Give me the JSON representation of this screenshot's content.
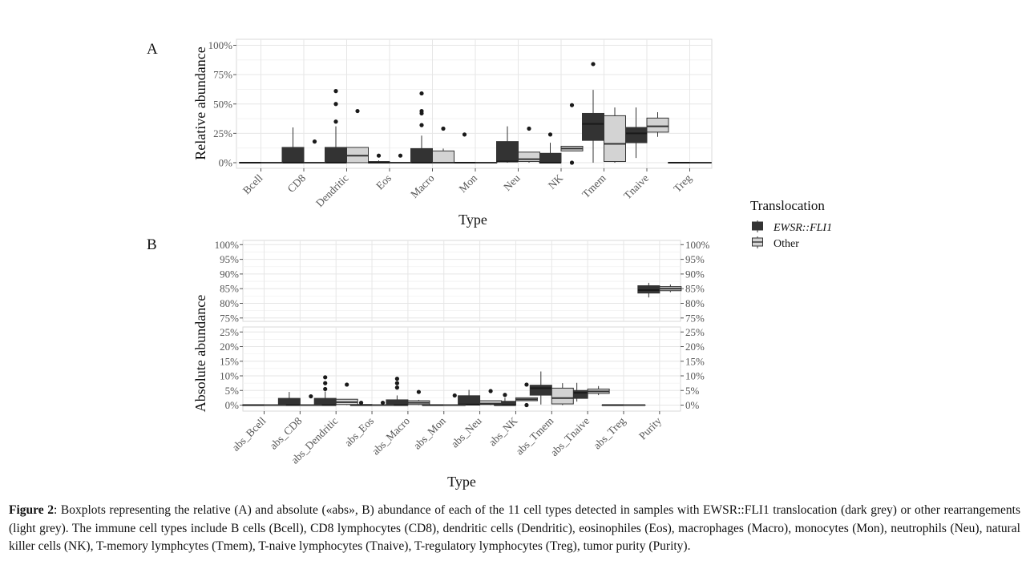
{
  "figure": {
    "panel_a_label": "A",
    "panel_b_label": "B",
    "legend": {
      "title": "Translocation",
      "items": [
        {
          "label": "EWSR::FLI1",
          "italic": true,
          "color": "#333333"
        },
        {
          "label": "Other",
          "italic": false,
          "color": "#d3d3d3"
        }
      ]
    }
  },
  "chart_data": [
    {
      "type": "box",
      "panel": "A",
      "xlabel": "Type",
      "ylabel": "Relative abundance",
      "ylim": [
        0,
        1
      ],
      "yticks": [
        "0%",
        "25%",
        "50%",
        "75%",
        "100%"
      ],
      "ytick_values": [
        0,
        0.25,
        0.5,
        0.75,
        1.0
      ],
      "categories": [
        "Bcell",
        "CD8",
        "Dendritic",
        "Eos",
        "Macro",
        "Mon",
        "Neu",
        "NK",
        "Tmem",
        "Tnaive",
        "Treg"
      ],
      "series": [
        {
          "name": "EWSR::FLI1",
          "boxes": [
            {
              "min": 0,
              "q1": 0,
              "median": 0,
              "q3": 0,
              "max": 0,
              "outliers": []
            },
            {
              "min": 0,
              "q1": 0,
              "median": 0,
              "q3": 0.13,
              "max": 0.3,
              "outliers": []
            },
            {
              "min": 0,
              "q1": 0,
              "median": 0,
              "q3": 0.13,
              "max": 0.31,
              "outliers": [
                0.35,
                0.5,
                0.61
              ]
            },
            {
              "min": 0,
              "q1": 0,
              "median": 0,
              "q3": 0.01,
              "max": 0.02,
              "outliers": [
                0.06
              ]
            },
            {
              "min": 0,
              "q1": 0,
              "median": 0,
              "q3": 0.12,
              "max": 0.23,
              "outliers": [
                0.32,
                0.42,
                0.44,
                0.59
              ]
            },
            {
              "min": 0,
              "q1": 0,
              "median": 0,
              "q3": 0,
              "max": 0,
              "outliers": [
                0.24
              ]
            },
            {
              "min": 0,
              "q1": 0.01,
              "median": 0.01,
              "q3": 0.18,
              "max": 0.31,
              "outliers": []
            },
            {
              "min": 0,
              "q1": 0,
              "median": 0,
              "q3": 0.08,
              "max": 0.17,
              "outliers": [
                0.24
              ]
            },
            {
              "min": 0,
              "q1": 0.19,
              "median": 0.33,
              "q3": 0.42,
              "max": 0.62,
              "outliers": [
                0.84
              ]
            },
            {
              "min": 0.04,
              "q1": 0.17,
              "median": 0.25,
              "q3": 0.3,
              "max": 0.47,
              "outliers": []
            },
            {
              "min": 0,
              "q1": 0,
              "median": 0,
              "q3": 0,
              "max": 0,
              "outliers": []
            }
          ]
        },
        {
          "name": "Other",
          "boxes": [
            {
              "min": 0,
              "q1": 0,
              "median": 0,
              "q3": 0,
              "max": 0,
              "outliers": []
            },
            {
              "min": 0,
              "q1": 0,
              "median": 0,
              "q3": 0,
              "max": 0,
              "outliers": [
                0.18
              ]
            },
            {
              "min": 0,
              "q1": 0,
              "median": 0.06,
              "q3": 0.13,
              "max": 0.13,
              "outliers": [
                0.44
              ]
            },
            {
              "min": 0,
              "q1": 0,
              "median": 0,
              "q3": 0,
              "max": 0,
              "outliers": [
                0.06
              ]
            },
            {
              "min": 0,
              "q1": 0,
              "median": 0,
              "q3": 0.1,
              "max": 0.12,
              "outliers": [
                0.29
              ]
            },
            {
              "min": 0,
              "q1": 0,
              "median": 0,
              "q3": 0,
              "max": 0,
              "outliers": []
            },
            {
              "min": 0,
              "q1": 0.01,
              "median": 0.03,
              "q3": 0.09,
              "max": 0.09,
              "outliers": [
                0.29
              ]
            },
            {
              "min": 0.1,
              "q1": 0.1,
              "median": 0.12,
              "q3": 0.14,
              "max": 0.14,
              "outliers": [
                0,
                0.49
              ]
            },
            {
              "min": 0,
              "q1": 0.01,
              "median": 0.16,
              "q3": 0.4,
              "max": 0.47,
              "outliers": []
            },
            {
              "min": 0.22,
              "q1": 0.26,
              "median": 0.31,
              "q3": 0.38,
              "max": 0.43,
              "outliers": []
            },
            {
              "min": 0,
              "q1": 0,
              "median": 0,
              "q3": 0,
              "max": 0,
              "outliers": []
            }
          ]
        }
      ]
    },
    {
      "type": "box",
      "panel": "B",
      "xlabel": "Type",
      "ylabel": "Absolute abundance",
      "categories": [
        "abs_Bcell",
        "abs_CD8",
        "abs_Dendritic",
        "abs_Eos",
        "abs_Macro",
        "abs_Mon",
        "abs_Neu",
        "abs_NK",
        "abs_Tmem",
        "abs_Tnaive",
        "abs_Treg",
        "Purity"
      ],
      "facets": [
        {
          "ylim": [
            0.74,
            1.0
          ],
          "yticks": [
            "75%",
            "80%",
            "85%",
            "90%",
            "95%",
            "100%"
          ],
          "ytick_values": [
            0.75,
            0.8,
            0.85,
            0.9,
            0.95,
            1.0
          ]
        },
        {
          "ylim": [
            0,
            0.25
          ],
          "yticks": [
            "0%",
            "5%",
            "10%",
            "15%",
            "20%",
            "25%"
          ],
          "ytick_values": [
            0,
            0.05,
            0.1,
            0.15,
            0.2,
            0.25
          ]
        }
      ],
      "series": [
        {
          "name": "EWSR::FLI1",
          "boxes": [
            {
              "min": 0,
              "q1": 0,
              "median": 0,
              "q3": 0,
              "max": 0,
              "outliers": []
            },
            {
              "min": 0,
              "q1": 0,
              "median": 0,
              "q3": 0.023,
              "max": 0.045,
              "outliers": []
            },
            {
              "min": 0,
              "q1": 0,
              "median": 0,
              "q3": 0.023,
              "max": 0.047,
              "outliers": [
                0.055,
                0.075,
                0.095
              ]
            },
            {
              "min": 0,
              "q1": 0,
              "median": 0,
              "q3": 0.002,
              "max": 0.005,
              "outliers": [
                0.008
              ]
            },
            {
              "min": 0,
              "q1": 0,
              "median": 0,
              "q3": 0.018,
              "max": 0.033,
              "outliers": [
                0.06,
                0.075,
                0.09
              ]
            },
            {
              "min": 0,
              "q1": 0,
              "median": 0,
              "q3": 0,
              "max": 0,
              "outliers": []
            },
            {
              "min": 0,
              "q1": 0,
              "median": 0.002,
              "q3": 0.032,
              "max": 0.052,
              "outliers": []
            },
            {
              "min": 0,
              "q1": 0,
              "median": 0,
              "q3": 0.013,
              "max": 0.025,
              "outliers": [
                0.035
              ]
            },
            {
              "min": 0.002,
              "q1": 0.034,
              "median": 0.058,
              "q3": 0.068,
              "max": 0.115,
              "outliers": []
            },
            {
              "min": 0.012,
              "q1": 0.023,
              "median": 0.042,
              "q3": 0.05,
              "max": 0.076,
              "outliers": []
            },
            {
              "min": 0,
              "q1": 0,
              "median": 0,
              "q3": 0,
              "max": 0,
              "outliers": []
            },
            {
              "min": 0.82,
              "q1": 0.835,
              "median": 0.845,
              "q3": 0.86,
              "max": 0.87,
              "outliers": []
            }
          ]
        },
        {
          "name": "Other",
          "boxes": [
            {
              "min": 0,
              "q1": 0,
              "median": 0,
              "q3": 0,
              "max": 0,
              "outliers": []
            },
            {
              "min": 0,
              "q1": 0,
              "median": 0,
              "q3": 0,
              "max": 0,
              "outliers": [
                0.03
              ]
            },
            {
              "min": 0,
              "q1": 0.002,
              "median": 0.01,
              "q3": 0.02,
              "max": 0.02,
              "outliers": [
                0.07
              ]
            },
            {
              "min": 0,
              "q1": 0,
              "median": 0,
              "q3": 0,
              "max": 0,
              "outliers": [
                0.008
              ]
            },
            {
              "min": 0,
              "q1": 0.002,
              "median": 0.008,
              "q3": 0.015,
              "max": 0.018,
              "outliers": [
                0.045
              ]
            },
            {
              "min": 0,
              "q1": 0,
              "median": 0,
              "q3": 0,
              "max": 0,
              "outliers": [
                0.033
              ]
            },
            {
              "min": 0,
              "q1": 0.002,
              "median": 0.005,
              "q3": 0.015,
              "max": 0.015,
              "outliers": [
                0.048
              ]
            },
            {
              "min": 0.015,
              "q1": 0.015,
              "median": 0.02,
              "q3": 0.025,
              "max": 0.025,
              "outliers": [
                0,
                0.07
              ]
            },
            {
              "min": 0,
              "q1": 0.004,
              "median": 0.024,
              "q3": 0.058,
              "max": 0.075,
              "outliers": []
            },
            {
              "min": 0.034,
              "q1": 0.04,
              "median": 0.047,
              "q3": 0.055,
              "max": 0.065,
              "outliers": []
            },
            {
              "min": 0,
              "q1": 0,
              "median": 0,
              "q3": 0,
              "max": 0,
              "outliers": []
            },
            {
              "min": 0.838,
              "q1": 0.843,
              "median": 0.85,
              "q3": 0.857,
              "max": 0.864,
              "outliers": []
            }
          ]
        }
      ]
    }
  ],
  "caption": {
    "label": "Figure 2",
    "text": ": Boxplots representing the relative  (A) and absolute («abs», B) abundance of each of the 11 cell types detected in samples with EWSR::FLI1 translocation (dark grey) or other rearrangements  (light  grey). The immune cell types include B cells (Bcell),  CD8 lymphocytes (CD8), dendritic cells (Dendritic), eosinophiles (Eos), macrophages (Macro), monocytes (Mon), neutrophils (Neu), natural killer  cells (NK), T-memory lymphcytes (Tmem), T-naive lymphocytes (Tnaive), T-regulatory lymphocytes (Treg), tumor purity (Purity)."
  }
}
